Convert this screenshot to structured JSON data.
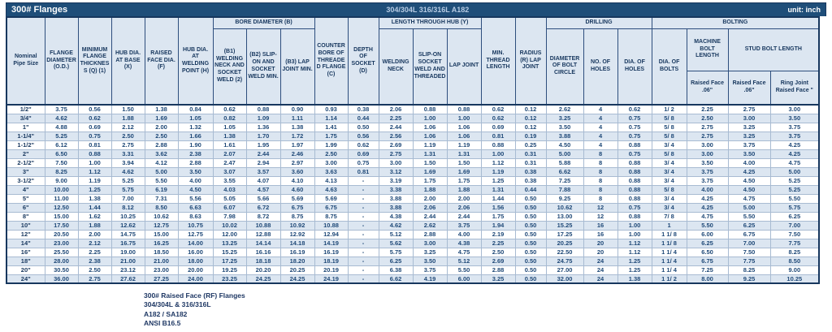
{
  "title_bar": {
    "left": "300# Flanges",
    "center": "304/304L 316/316L A182",
    "right": "unit: inch"
  },
  "colors": {
    "title_bar_bg": "#1F4E79",
    "header_fill": "#DCE6F1",
    "stripe_fill": "#DCE6F1",
    "header_text": "#17375E",
    "data_text": "#1F4978",
    "outer_border": "#17375E"
  },
  "header": {
    "nominal_pipe_size": "Nominal Pipe Size",
    "flange_diameter": "FLANGE DIAMETER (O.D.)",
    "min_flange_thickness": "MINIMUM FLANGE THICKNESS (Q) (1)",
    "hub_dia_at_base": "HUB DIA. AT BASE (X)",
    "raised_face_dia": "RAISED FACE DIA. (F)",
    "hub_dia_at_welding_point": "HUB DIA. AT WELDING POINT (H)",
    "bore_diameter_group": "BORE DIAMETER (B)",
    "b1": "(B1) WELDING NECK AND SOCKET WELD (2)",
    "b2": "(B2) SLIP-ON AND SOCKET WELD MIN.",
    "b3": "(B3) LAP JOINT MIN.",
    "counter_bore": "COUNTER BORE OF THREADED FLANGE (C)",
    "depth_of_socket": "DEPTH OF SOCKET (D)",
    "length_through_hub_group": "LENGTH THROUGH HUB (Y)",
    "welding_neck": "WELDING NECK",
    "slip_on_socket_weld_threaded": "SLIP-ON SOCKET WELD AND THREADED",
    "lap_joint": "LAP JOINT",
    "min_thread_length": "MIN. THREAD LENGTH",
    "radius_lap_joint": "RADIUS (R) LAP JOINT",
    "drilling_group": "DRILLING",
    "diameter_of_bolt_circle": "DIAMETER OF BOLT CIRCLE",
    "no_of_holes": "NO. OF HOLES",
    "dia_of_holes": "DIA. OF HOLES",
    "bolting_group": "BOLTING",
    "dia_of_bolts": "DIA. OF BOLTS",
    "machine_bolt_length": "MACHINE BOLT LENGTH",
    "stud_bolt_length": "STUD BOLT LENGTH",
    "machine_raised_face": "Raised Face .06\"",
    "stud_raised_face": "Raised Face .06\"",
    "stud_ring_joint": "Ring Joint Raised Face \""
  },
  "table": {
    "rows": [
      [
        "1/2\"",
        "3.75",
        "0.56",
        "1.50",
        "1.38",
        "0.84",
        "0.62",
        "0.88",
        "0.90",
        "0.93",
        "0.38",
        "2.06",
        "0.88",
        "0.88",
        "0.62",
        "0.12",
        "2.62",
        "4",
        "0.62",
        "1/ 2",
        "2.25",
        "2.75",
        "3.00"
      ],
      [
        "3/4\"",
        "4.62",
        "0.62",
        "1.88",
        "1.69",
        "1.05",
        "0.82",
        "1.09",
        "1.11",
        "1.14",
        "0.44",
        "2.25",
        "1.00",
        "1.00",
        "0.62",
        "0.12",
        "3.25",
        "4",
        "0.75",
        "5/ 8",
        "2.50",
        "3.00",
        "3.50"
      ],
      [
        "1\"",
        "4.88",
        "0.69",
        "2.12",
        "2.00",
        "1.32",
        "1.05",
        "1.36",
        "1.38",
        "1.41",
        "0.50",
        "2.44",
        "1.06",
        "1.06",
        "0.69",
        "0.12",
        "3.50",
        "4",
        "0.75",
        "5/ 8",
        "2.75",
        "3.25",
        "3.75"
      ],
      [
        "1-1/4\"",
        "5.25",
        "0.75",
        "2.50",
        "2.50",
        "1.66",
        "1.38",
        "1.70",
        "1.72",
        "1.75",
        "0.56",
        "2.56",
        "1.06",
        "1.06",
        "0.81",
        "0.19",
        "3.88",
        "4",
        "0.75",
        "5/ 8",
        "2.75",
        "3.25",
        "3.75"
      ],
      [
        "1-1/2\"",
        "6.12",
        "0.81",
        "2.75",
        "2.88",
        "1.90",
        "1.61",
        "1.95",
        "1.97",
        "1.99",
        "0.62",
        "2.69",
        "1.19",
        "1.19",
        "0.88",
        "0.25",
        "4.50",
        "4",
        "0.88",
        "3/ 4",
        "3.00",
        "3.75",
        "4.25"
      ],
      [
        "2\"",
        "6.50",
        "0.88",
        "3.31",
        "3.62",
        "2.38",
        "2.07",
        "2.44",
        "2.46",
        "2.50",
        "0.69",
        "2.75",
        "1.31",
        "1.31",
        "1.00",
        "0.31",
        "5.00",
        "8",
        "0.75",
        "5/ 8",
        "3.00",
        "3.50",
        "4.25"
      ],
      [
        "2-1/2\"",
        "7.50",
        "1.00",
        "3.94",
        "4.12",
        "2.88",
        "2.47",
        "2.94",
        "2.97",
        "3.00",
        "0.75",
        "3.00",
        "1.50",
        "1.50",
        "1.12",
        "0.31",
        "5.88",
        "8",
        "0.88",
        "3/ 4",
        "3.50",
        "4.00",
        "4.75"
      ],
      [
        "3\"",
        "8.25",
        "1.12",
        "4.62",
        "5.00",
        "3.50",
        "3.07",
        "3.57",
        "3.60",
        "3.63",
        "0.81",
        "3.12",
        "1.69",
        "1.69",
        "1.19",
        "0.38",
        "6.62",
        "8",
        "0.88",
        "3/ 4",
        "3.75",
        "4.25",
        "5.00"
      ],
      [
        "3-1/2\"",
        "9.00",
        "1.19",
        "5.25",
        "5.50",
        "4.00",
        "3.55",
        "4.07",
        "4.10",
        "4.13",
        "-",
        "3.19",
        "1.75",
        "1.75",
        "1.25",
        "0.38",
        "7.25",
        "8",
        "0.88",
        "3/ 4",
        "3.75",
        "4.50",
        "5.25"
      ],
      [
        "4\"",
        "10.00",
        "1.25",
        "5.75",
        "6.19",
        "4.50",
        "4.03",
        "4.57",
        "4.60",
        "4.63",
        "-",
        "3.38",
        "1.88",
        "1.88",
        "1.31",
        "0.44",
        "7.88",
        "8",
        "0.88",
        "5/ 8",
        "4.00",
        "4.50",
        "5.25"
      ],
      [
        "5\"",
        "11.00",
        "1.38",
        "7.00",
        "7.31",
        "5.56",
        "5.05",
        "5.66",
        "5.69",
        "5.69",
        "-",
        "3.88",
        "2.00",
        "2.00",
        "1.44",
        "0.50",
        "9.25",
        "8",
        "0.88",
        "3/ 4",
        "4.25",
        "4.75",
        "5.50"
      ],
      [
        "6\"",
        "12.50",
        "1.44",
        "8.12",
        "8.50",
        "6.63",
        "6.07",
        "6.72",
        "6.75",
        "6.75",
        "-",
        "3.88",
        "2.06",
        "2.06",
        "1.56",
        "0.50",
        "10.62",
        "12",
        "0.75",
        "3/ 4",
        "4.25",
        "5.00",
        "5.75"
      ],
      [
        "8\"",
        "15.00",
        "1.62",
        "10.25",
        "10.62",
        "8.63",
        "7.98",
        "8.72",
        "8.75",
        "8.75",
        "-",
        "4.38",
        "2.44",
        "2.44",
        "1.75",
        "0.50",
        "13.00",
        "12",
        "0.88",
        "7/ 8",
        "4.75",
        "5.50",
        "6.25"
      ],
      [
        "10\"",
        "17.50",
        "1.88",
        "12.62",
        "12.75",
        "10.75",
        "10.02",
        "10.88",
        "10.92",
        "10.88",
        "-",
        "4.62",
        "2.62",
        "3.75",
        "1.94",
        "0.50",
        "15.25",
        "16",
        "1.00",
        "1",
        "5.50",
        "6.25",
        "7.00"
      ],
      [
        "12\"",
        "20.50",
        "2.00",
        "14.75",
        "15.00",
        "12.75",
        "12.00",
        "12.88",
        "12.92",
        "12.94",
        "-",
        "5.12",
        "2.88",
        "4.00",
        "2.19",
        "0.50",
        "17.25",
        "16",
        "1.00",
        "1 1/ 8",
        "6.00",
        "6.75",
        "7.50"
      ],
      [
        "14\"",
        "23.00",
        "2.12",
        "16.75",
        "16.25",
        "14.00",
        "13.25",
        "14.14",
        "14.18",
        "14.19",
        "-",
        "5.62",
        "3.00",
        "4.38",
        "2.25",
        "0.50",
        "20.25",
        "20",
        "1.12",
        "1 1/ 8",
        "6.25",
        "7.00",
        "7.75"
      ],
      [
        "16\"",
        "25.50",
        "2.25",
        "19.00",
        "18.50",
        "16.00",
        "15.25",
        "16.16",
        "16.19",
        "16.19",
        "-",
        "5.75",
        "3.25",
        "4.75",
        "2.50",
        "0.50",
        "22.50",
        "20",
        "1.12",
        "1 1/ 4",
        "6.50",
        "7.50",
        "8.25"
      ],
      [
        "18\"",
        "28.00",
        "2.38",
        "21.00",
        "21.00",
        "18.00",
        "17.25",
        "18.18",
        "18.20",
        "18.19",
        "-",
        "6.25",
        "3.50",
        "5.12",
        "2.69",
        "0.50",
        "24.75",
        "24",
        "1.25",
        "1 1/ 4",
        "6.75",
        "7.75",
        "8.50"
      ],
      [
        "20\"",
        "30.50",
        "2.50",
        "23.12",
        "23.00",
        "20.00",
        "19.25",
        "20.20",
        "20.25",
        "20.19",
        "-",
        "6.38",
        "3.75",
        "5.50",
        "2.88",
        "0.50",
        "27.00",
        "24",
        "1.25",
        "1 1/ 4",
        "7.25",
        "8.25",
        "9.00"
      ],
      [
        "24\"",
        "36.00",
        "2.75",
        "27.62",
        "27.25",
        "24.00",
        "23.25",
        "24.25",
        "24.25",
        "24.19",
        "-",
        "6.62",
        "4.19",
        "6.00",
        "3.25",
        "0.50",
        "32.00",
        "24",
        "1.38",
        "1 1/ 2",
        "8.00",
        "9.25",
        "10.25"
      ]
    ]
  },
  "footnotes": [
    "300# Raised Face (RF) Flanges",
    "304/304L & 316/316L",
    "A182 / SA182",
    "ANSI B16.5"
  ]
}
